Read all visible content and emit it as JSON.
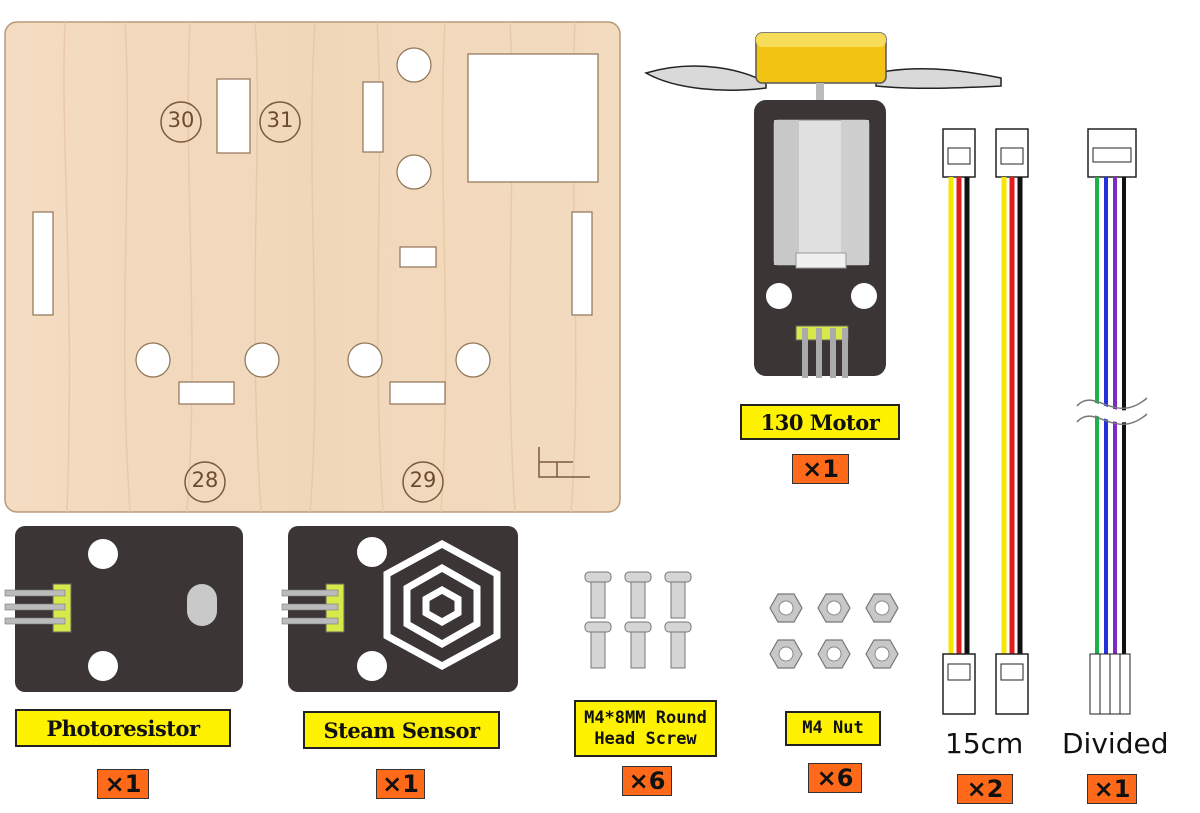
{
  "board": {
    "hole_labels": [
      "30",
      "31",
      "28",
      "29"
    ]
  },
  "parts": [
    {
      "name": "130 Motor",
      "qty": "×1"
    },
    {
      "name": "Photoresistor",
      "qty": "×1"
    },
    {
      "name": "Steam Sensor",
      "qty": "×1"
    },
    {
      "name": "M4*8MM Round Head Screw",
      "qty": "×6"
    },
    {
      "name": "M4 Nut",
      "qty": "×6"
    }
  ],
  "cables": [
    {
      "caption": "15cm",
      "qty": "×2"
    },
    {
      "caption": "Divided",
      "qty": "×1"
    }
  ],
  "colors": {
    "wood": "#f2d9bd",
    "module_pcb": "#3c3535",
    "label_bg": "#fff200",
    "qty_bg": "#ff6a1a"
  }
}
